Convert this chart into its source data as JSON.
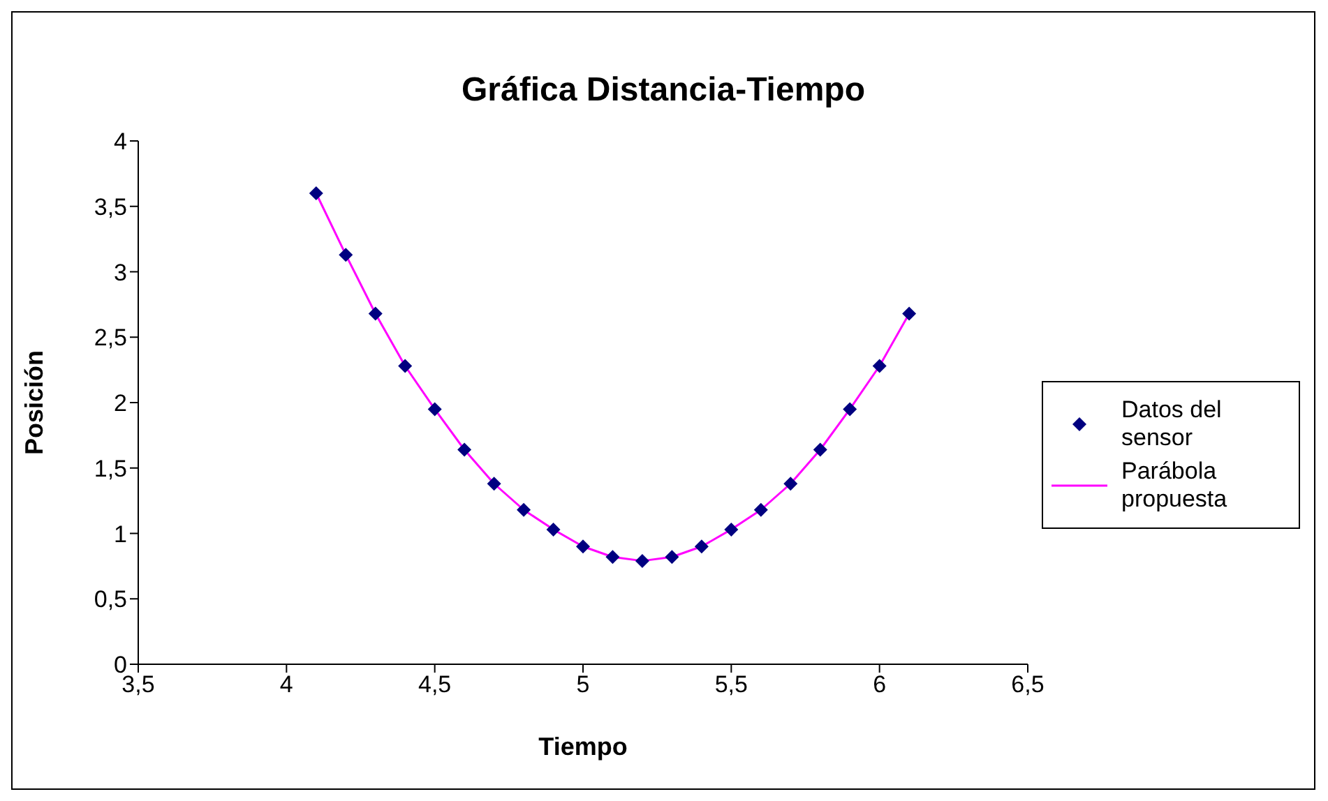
{
  "chart_data": {
    "type": "scatter",
    "title": "Gráfica Distancia-Tiempo",
    "xlabel": "Tiempo",
    "ylabel": "Posición",
    "x": [
      4.1,
      4.2,
      4.3,
      4.4,
      4.5,
      4.6,
      4.7,
      4.8,
      4.9,
      5.0,
      5.1,
      5.2,
      5.3,
      5.4,
      5.5,
      5.6,
      5.7,
      5.8,
      5.9,
      6.0,
      6.1
    ],
    "series": [
      {
        "name": "Datos del sensor",
        "type": "scatter",
        "color": "#000080",
        "marker": "diamond",
        "values": [
          3.6,
          3.13,
          2.68,
          2.28,
          1.95,
          1.64,
          1.38,
          1.18,
          1.03,
          0.9,
          0.82,
          0.79,
          0.82,
          0.9,
          1.03,
          1.18,
          1.38,
          1.64,
          1.95,
          2.28,
          2.68
        ]
      },
      {
        "name": "Parábola propuesta",
        "type": "line",
        "color": "#ff00ff",
        "marker": "none",
        "line_style": "solid",
        "values": [
          3.6,
          3.13,
          2.68,
          2.28,
          1.95,
          1.64,
          1.38,
          1.18,
          1.03,
          0.9,
          0.82,
          0.79,
          0.82,
          0.9,
          1.03,
          1.18,
          1.38,
          1.64,
          1.95,
          2.28,
          2.68
        ]
      }
    ],
    "xlim": [
      3.5,
      6.5
    ],
    "xticks": [
      {
        "value": 3.5,
        "label": "3,5"
      },
      4,
      {
        "value": 4.5,
        "label": "4,5"
      },
      5,
      {
        "value": 5.5,
        "label": "5,5"
      },
      6,
      {
        "value": 6.5,
        "label": "6,5"
      }
    ],
    "ylim": [
      0,
      4
    ],
    "yticks": [
      0,
      {
        "value": 0.5,
        "label": "0,5"
      },
      1,
      {
        "value": 1.5,
        "label": "1,5"
      },
      2,
      {
        "value": 2.5,
        "label": "2,5"
      },
      3,
      {
        "value": 3.5,
        "label": "3,5"
      },
      4
    ],
    "grid": false,
    "legend": "right"
  }
}
